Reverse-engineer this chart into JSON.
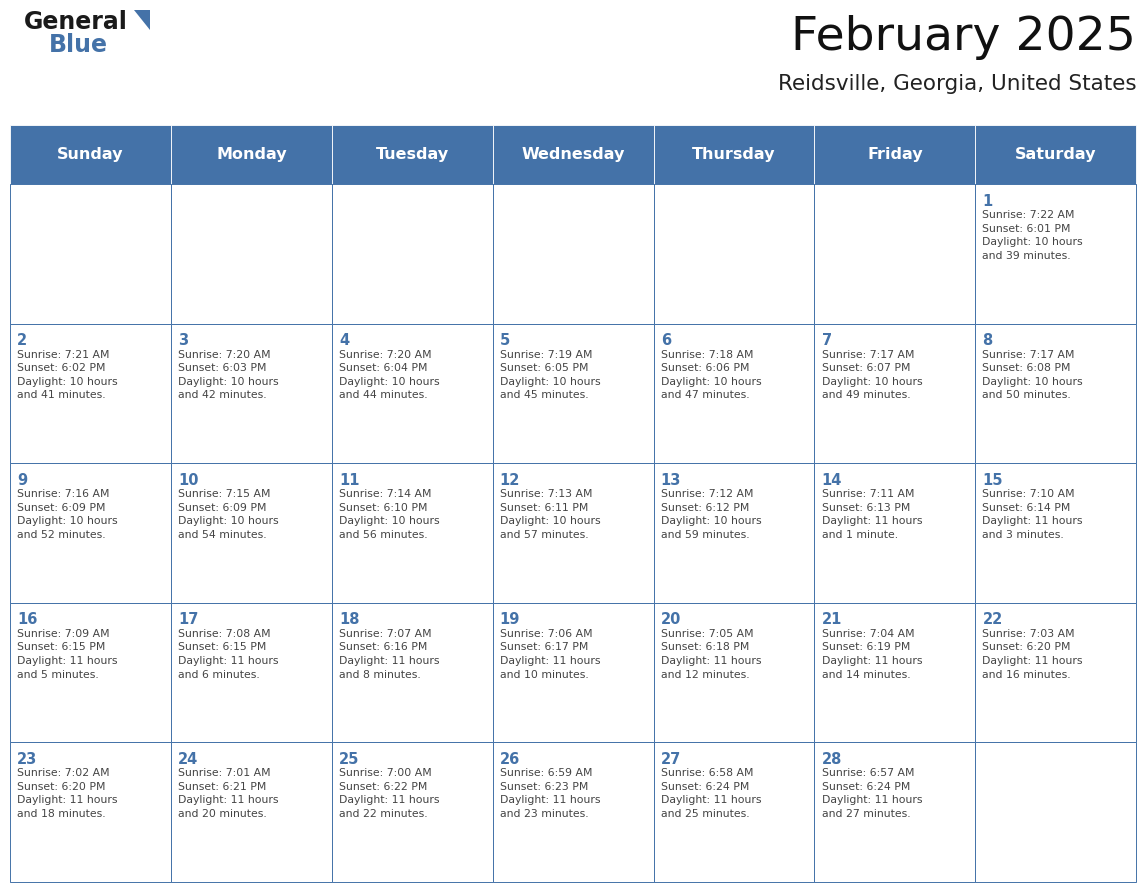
{
  "title": "February 2025",
  "subtitle": "Reidsville, Georgia, United States",
  "days_of_week": [
    "Sunday",
    "Monday",
    "Tuesday",
    "Wednesday",
    "Thursday",
    "Friday",
    "Saturday"
  ],
  "header_bg": "#4472a8",
  "header_text": "#ffffff",
  "cell_bg": "#ffffff",
  "border_color": "#4472a8",
  "day_num_color": "#4472a8",
  "text_color": "#444444",
  "title_color": "#111111",
  "subtitle_color": "#222222",
  "logo_general_color": "#1a1a1a",
  "logo_blue_color": "#4472a8",
  "logo_triangle_color": "#4472a8",
  "weeks": [
    [
      {
        "day": null,
        "sunrise": null,
        "sunset": null,
        "daylight": null
      },
      {
        "day": null,
        "sunrise": null,
        "sunset": null,
        "daylight": null
      },
      {
        "day": null,
        "sunrise": null,
        "sunset": null,
        "daylight": null
      },
      {
        "day": null,
        "sunrise": null,
        "sunset": null,
        "daylight": null
      },
      {
        "day": null,
        "sunrise": null,
        "sunset": null,
        "daylight": null
      },
      {
        "day": null,
        "sunrise": null,
        "sunset": null,
        "daylight": null
      },
      {
        "day": 1,
        "sunrise": "7:22 AM",
        "sunset": "6:01 PM",
        "daylight": "10 hours\nand 39 minutes."
      }
    ],
    [
      {
        "day": 2,
        "sunrise": "7:21 AM",
        "sunset": "6:02 PM",
        "daylight": "10 hours\nand 41 minutes."
      },
      {
        "day": 3,
        "sunrise": "7:20 AM",
        "sunset": "6:03 PM",
        "daylight": "10 hours\nand 42 minutes."
      },
      {
        "day": 4,
        "sunrise": "7:20 AM",
        "sunset": "6:04 PM",
        "daylight": "10 hours\nand 44 minutes."
      },
      {
        "day": 5,
        "sunrise": "7:19 AM",
        "sunset": "6:05 PM",
        "daylight": "10 hours\nand 45 minutes."
      },
      {
        "day": 6,
        "sunrise": "7:18 AM",
        "sunset": "6:06 PM",
        "daylight": "10 hours\nand 47 minutes."
      },
      {
        "day": 7,
        "sunrise": "7:17 AM",
        "sunset": "6:07 PM",
        "daylight": "10 hours\nand 49 minutes."
      },
      {
        "day": 8,
        "sunrise": "7:17 AM",
        "sunset": "6:08 PM",
        "daylight": "10 hours\nand 50 minutes."
      }
    ],
    [
      {
        "day": 9,
        "sunrise": "7:16 AM",
        "sunset": "6:09 PM",
        "daylight": "10 hours\nand 52 minutes."
      },
      {
        "day": 10,
        "sunrise": "7:15 AM",
        "sunset": "6:09 PM",
        "daylight": "10 hours\nand 54 minutes."
      },
      {
        "day": 11,
        "sunrise": "7:14 AM",
        "sunset": "6:10 PM",
        "daylight": "10 hours\nand 56 minutes."
      },
      {
        "day": 12,
        "sunrise": "7:13 AM",
        "sunset": "6:11 PM",
        "daylight": "10 hours\nand 57 minutes."
      },
      {
        "day": 13,
        "sunrise": "7:12 AM",
        "sunset": "6:12 PM",
        "daylight": "10 hours\nand 59 minutes."
      },
      {
        "day": 14,
        "sunrise": "7:11 AM",
        "sunset": "6:13 PM",
        "daylight": "11 hours\nand 1 minute."
      },
      {
        "day": 15,
        "sunrise": "7:10 AM",
        "sunset": "6:14 PM",
        "daylight": "11 hours\nand 3 minutes."
      }
    ],
    [
      {
        "day": 16,
        "sunrise": "7:09 AM",
        "sunset": "6:15 PM",
        "daylight": "11 hours\nand 5 minutes."
      },
      {
        "day": 17,
        "sunrise": "7:08 AM",
        "sunset": "6:15 PM",
        "daylight": "11 hours\nand 6 minutes."
      },
      {
        "day": 18,
        "sunrise": "7:07 AM",
        "sunset": "6:16 PM",
        "daylight": "11 hours\nand 8 minutes."
      },
      {
        "day": 19,
        "sunrise": "7:06 AM",
        "sunset": "6:17 PM",
        "daylight": "11 hours\nand 10 minutes."
      },
      {
        "day": 20,
        "sunrise": "7:05 AM",
        "sunset": "6:18 PM",
        "daylight": "11 hours\nand 12 minutes."
      },
      {
        "day": 21,
        "sunrise": "7:04 AM",
        "sunset": "6:19 PM",
        "daylight": "11 hours\nand 14 minutes."
      },
      {
        "day": 22,
        "sunrise": "7:03 AM",
        "sunset": "6:20 PM",
        "daylight": "11 hours\nand 16 minutes."
      }
    ],
    [
      {
        "day": 23,
        "sunrise": "7:02 AM",
        "sunset": "6:20 PM",
        "daylight": "11 hours\nand 18 minutes."
      },
      {
        "day": 24,
        "sunrise": "7:01 AM",
        "sunset": "6:21 PM",
        "daylight": "11 hours\nand 20 minutes."
      },
      {
        "day": 25,
        "sunrise": "7:00 AM",
        "sunset": "6:22 PM",
        "daylight": "11 hours\nand 22 minutes."
      },
      {
        "day": 26,
        "sunrise": "6:59 AM",
        "sunset": "6:23 PM",
        "daylight": "11 hours\nand 23 minutes."
      },
      {
        "day": 27,
        "sunrise": "6:58 AM",
        "sunset": "6:24 PM",
        "daylight": "11 hours\nand 25 minutes."
      },
      {
        "day": 28,
        "sunrise": "6:57 AM",
        "sunset": "6:24 PM",
        "daylight": "11 hours\nand 27 minutes."
      },
      {
        "day": null,
        "sunrise": null,
        "sunset": null,
        "daylight": null
      }
    ]
  ]
}
